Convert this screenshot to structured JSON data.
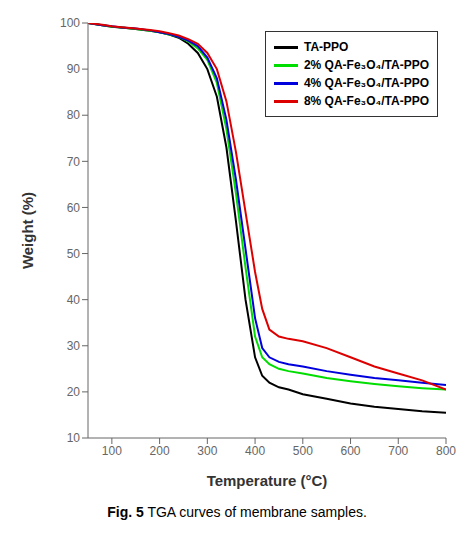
{
  "chart_data": {
    "type": "line",
    "xlabel": "Temperature (°C)",
    "ylabel": "Weight (%)",
    "caption": [
      "Fig. 5",
      "TGA curves of membrane samples."
    ],
    "x": [
      50,
      80,
      100,
      120,
      150,
      180,
      200,
      220,
      240,
      260,
      280,
      300,
      320,
      340,
      360,
      380,
      400,
      415,
      430,
      450,
      470,
      500,
      550,
      600,
      650,
      700,
      750,
      800
    ],
    "series": [
      {
        "name": "TA-PPO",
        "color": "#000000",
        "values": [
          100,
          99.5,
          99.2,
          99.0,
          98.7,
          98.3,
          98.0,
          97.5,
          96.8,
          95.5,
          93.5,
          90.0,
          84.0,
          73.0,
          57.0,
          40.0,
          27.5,
          23.5,
          22.0,
          21.0,
          20.5,
          19.5,
          18.5,
          17.5,
          16.8,
          16.3,
          15.8,
          15.5
        ]
      },
      {
        "name": "2% QA-Fe₃O₄/TA-PPO",
        "color": "#00dd00",
        "values": [
          100,
          99.5,
          99.2,
          99.0,
          98.7,
          98.3,
          98.0,
          97.5,
          97.0,
          96.0,
          94.5,
          92.0,
          87.0,
          77.0,
          63.0,
          47.0,
          32.0,
          27.5,
          26.0,
          25.0,
          24.5,
          24.0,
          23.0,
          22.3,
          21.7,
          21.2,
          20.8,
          20.5
        ]
      },
      {
        "name": "4% QA-Fe₃O₄/TA-PPO",
        "color": "#0000dd",
        "values": [
          100,
          99.5,
          99.3,
          99.0,
          98.8,
          98.4,
          98.0,
          97.6,
          97.0,
          96.2,
          95.0,
          92.5,
          88.0,
          79.0,
          66.0,
          51.0,
          36.0,
          29.5,
          27.5,
          26.5,
          26.0,
          25.5,
          24.5,
          23.7,
          23.0,
          22.5,
          22.0,
          21.5
        ]
      },
      {
        "name": "8% QA-Fe₃O₄/TA-PPO",
        "color": "#dd0000",
        "values": [
          100,
          99.6,
          99.3,
          99.1,
          98.8,
          98.5,
          98.2,
          97.8,
          97.3,
          96.5,
          95.5,
          93.5,
          90.0,
          83.0,
          72.0,
          59.0,
          46.0,
          38.0,
          33.5,
          32.0,
          31.5,
          31.0,
          29.5,
          27.5,
          25.5,
          24.0,
          22.5,
          20.5
        ]
      }
    ],
    "xlim": [
      50,
      800
    ],
    "ylim": [
      10,
      100
    ],
    "xticks": [
      100,
      200,
      300,
      400,
      500,
      600,
      700,
      800
    ],
    "yticks": [
      10,
      20,
      30,
      40,
      50,
      60,
      70,
      80,
      90,
      100
    ],
    "grid": false,
    "legend": "upper right"
  }
}
